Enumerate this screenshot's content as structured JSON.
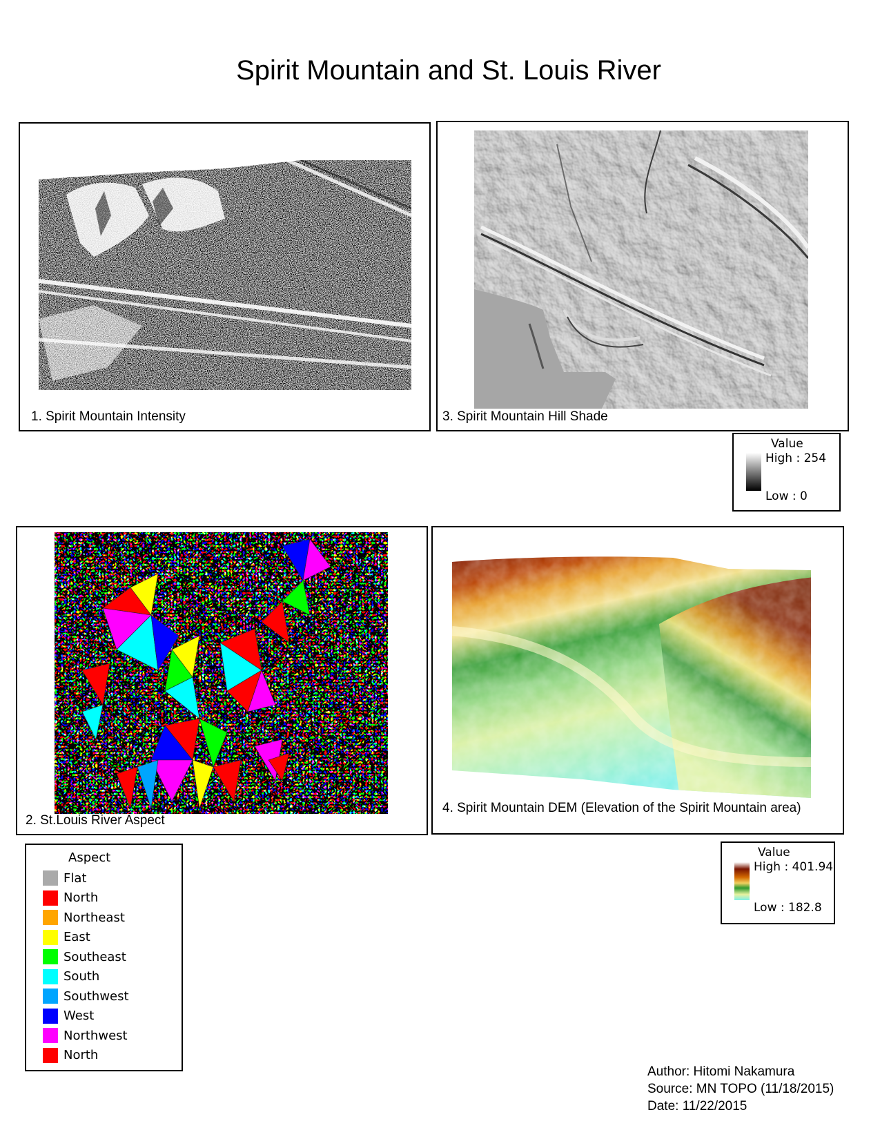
{
  "map_title": "Spirit Mountain and St. Louis River",
  "panels": {
    "intensity": {
      "caption": "1. Spirit Mountain Intensity"
    },
    "aspect": {
      "caption": "2. St.Louis River Aspect"
    },
    "hillshade": {
      "caption": "3. Spirit Mountain Hill Shade"
    },
    "dem": {
      "caption": "4. Spirit Mountain DEM (Elevation of the Spirit Mountain area)"
    }
  },
  "hillshade_legend": {
    "title": "Value",
    "high": "High : 254",
    "low": "Low : 0",
    "high_value": 254,
    "low_value": 0,
    "ramp_colors": [
      "#ffffff",
      "#000000"
    ]
  },
  "dem_legend": {
    "title": "Value",
    "high": "High : 401.94",
    "low": "Low : 182.8",
    "high_value": 401.94,
    "low_value": 182.8,
    "ramp_colors": [
      "#ffffff",
      "#7a1400",
      "#d46a00",
      "#f0d060",
      "#2f9a2f",
      "#e8f2a0",
      "#7ff0e6"
    ]
  },
  "aspect_legend": {
    "title": "Aspect",
    "classes": [
      {
        "label": "Flat",
        "color": "#aaaaaa"
      },
      {
        "label": "North",
        "color": "#ff0000"
      },
      {
        "label": "Northeast",
        "color": "#ffa500"
      },
      {
        "label": "East",
        "color": "#ffff00"
      },
      {
        "label": "Southeast",
        "color": "#00ff00"
      },
      {
        "label": "South",
        "color": "#00ffff"
      },
      {
        "label": "Southwest",
        "color": "#00a5ff"
      },
      {
        "label": "West",
        "color": "#0000ff"
      },
      {
        "label": "Northwest",
        "color": "#ff00ff"
      },
      {
        "label": "North",
        "color": "#ff0000"
      }
    ]
  },
  "credits": {
    "author": "Author: Hitomi Nakamura",
    "source": "Source: MN TOPO (11/18/2015)",
    "date": "Date: 11/22/2015"
  }
}
